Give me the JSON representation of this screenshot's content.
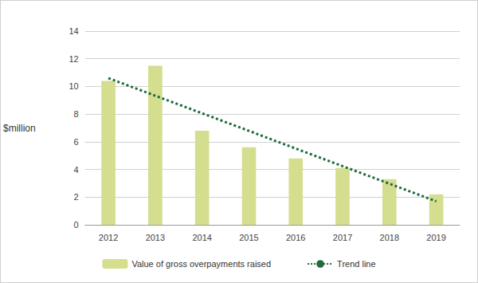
{
  "chart_data": {
    "type": "bar",
    "y_label": "$million",
    "categories": [
      "2012",
      "2013",
      "2014",
      "2015",
      "2016",
      "2017",
      "2018",
      "2019"
    ],
    "series": [
      {
        "name": "Value of gross overpayments raised",
        "type": "bar",
        "color": "#d5dd8f",
        "values": [
          10.4,
          11.5,
          6.8,
          5.6,
          4.8,
          4.1,
          3.3,
          2.2
        ]
      },
      {
        "name": "Trend line",
        "type": "line",
        "color": "#1f6b3a",
        "line_style": "dotted",
        "values": [
          10.6,
          9.33,
          8.06,
          6.79,
          5.51,
          4.24,
          2.97,
          1.7
        ]
      }
    ],
    "ylim": [
      0,
      14
    ],
    "yticks": [
      0,
      2,
      4,
      6,
      8,
      10,
      12,
      14
    ],
    "grid": true,
    "legend": "bottom"
  }
}
